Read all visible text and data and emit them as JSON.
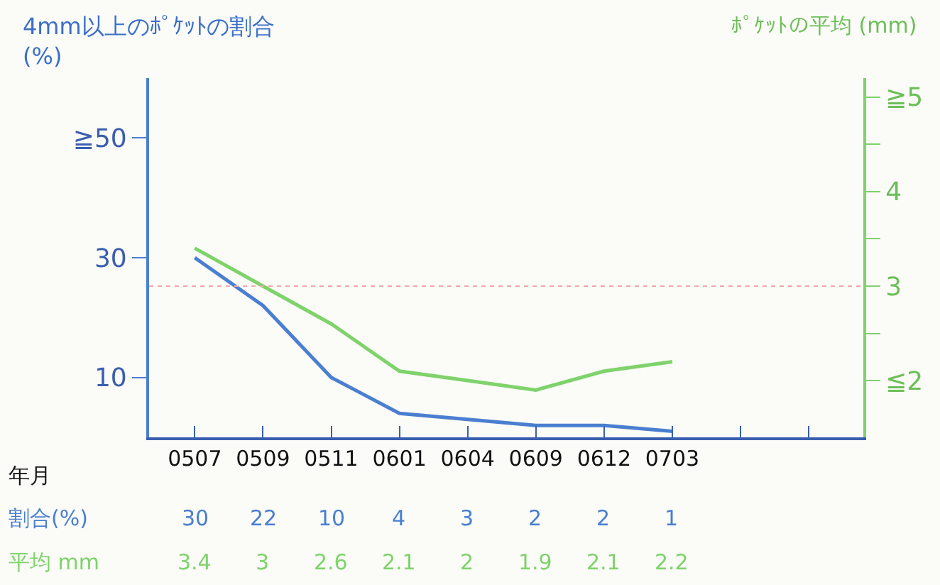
{
  "chart_data": {
    "type": "line",
    "ylabel": "4mm以上のﾎﾟｹｯﾄの割合\n(%)",
    "y2label": "ﾎﾟｹｯﾄの平均 (mm)",
    "xlabel": "年月",
    "categories": [
      "0507",
      "0509",
      "0511",
      "0601",
      "0604",
      "0609",
      "0612",
      "0703",
      null,
      null
    ],
    "series": [
      {
        "name": "割合(%)",
        "color": "#4a7fd0",
        "values": [
          30,
          22,
          10,
          4,
          3,
          2,
          2,
          1,
          null,
          null
        ]
      },
      {
        "name": "平均 mm",
        "color": "#7ed36a",
        "axis": "y2",
        "values": [
          3.4,
          3,
          2.6,
          2.1,
          2,
          1.9,
          2.1,
          2.2,
          null,
          null
        ]
      }
    ],
    "ylim": [
      0,
      60
    ],
    "yticks": [
      10,
      30,
      {
        "value": 50,
        "label": "≧50"
      }
    ],
    "y2lim": [
      1.4,
      5.2
    ],
    "y2ticks": [
      {
        "value": 2,
        "label": "≦2"
      },
      {
        "value": 2.5,
        "label": null
      },
      3,
      {
        "value": 3.5,
        "label": null
      },
      4,
      {
        "value": 4.5,
        "label": null
      },
      {
        "value": 5,
        "label": "≧5"
      }
    ],
    "ref_lines": [
      {
        "axis": "y2",
        "value": 3,
        "color": "#f0a8a8",
        "line_style": "dotted"
      }
    ],
    "data_labels": true,
    "grid": false,
    "legend": false,
    "marker": "none",
    "line_style": "solid"
  }
}
